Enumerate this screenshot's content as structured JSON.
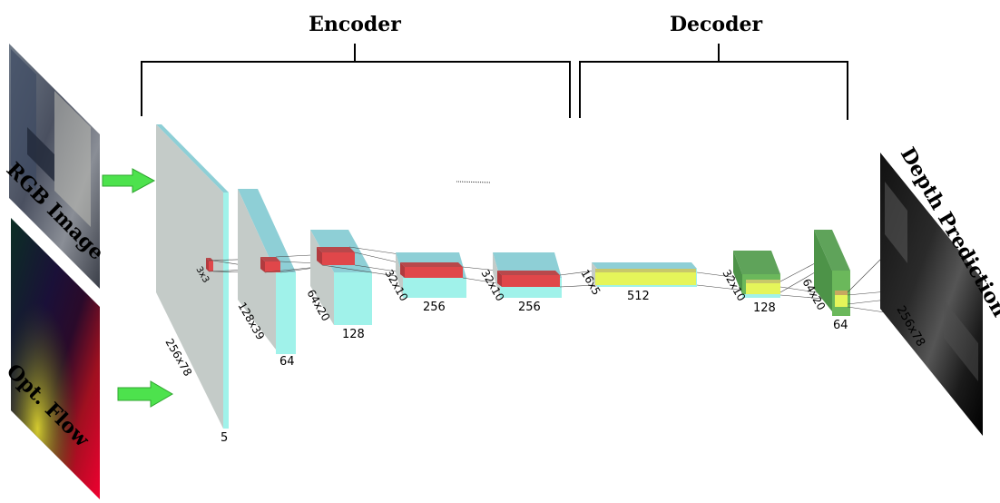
{
  "sections": {
    "encoder_label": "Encoder",
    "decoder_label": "Decoder"
  },
  "inputs": {
    "rgb_label": "RGB Image",
    "flow_label": "Opt. Flow"
  },
  "output": {
    "label": "Depth Prediction",
    "size": "256x78"
  },
  "encoder": {
    "kernel": "3x3",
    "layer1": {
      "size": "256x78",
      "channels": "5"
    },
    "layer2": {
      "size": "128x39",
      "channels": "64"
    },
    "layer3": {
      "size": "64x20",
      "channels": "128"
    },
    "layer4": {
      "size": "32x10",
      "channels": "256"
    },
    "layer5": {
      "size": "32x10",
      "channels": "256"
    }
  },
  "bottleneck": {
    "size": "16x5",
    "channels": "512"
  },
  "decoder": {
    "layer1": {
      "size": "32x10",
      "channels": "128"
    },
    "layer2": {
      "size": "64x20",
      "channels": "64"
    }
  },
  "colors": {
    "gray_face": "#c4cbc8",
    "cyan_face": "#a0f2ea",
    "cyan_top": "#8ecfd6",
    "red_front": "#e0474a",
    "red_top": "#b8484b",
    "green_front": "#6bb85b",
    "green_top": "#5fa35a",
    "yellow": "#e5f55a",
    "arrow_green": "#4de24d"
  }
}
